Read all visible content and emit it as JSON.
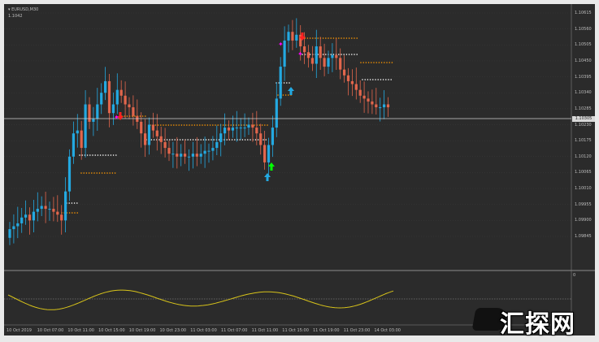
{
  "chart": {
    "symbol_label": "▾ EURUSD,M30",
    "top_price_label": "1.1042",
    "current_price": "1.10305",
    "y_ticks": [
      "1.10615",
      "1.10560",
      "1.10505",
      "1.10450",
      "1.10395",
      "1.10340",
      "1.10285",
      "1.10230",
      "1.10175",
      "1.10120",
      "1.10065",
      "1.10010",
      "1.09955",
      "1.09900",
      "1.09845"
    ],
    "x_ticks": [
      "10 Oct 2019",
      "10 Oct 07:00",
      "10 Oct 11:00",
      "10 Oct 15:00",
      "10 Oct 19:00",
      "10 Oct 23:00",
      "11 Oct 03:00",
      "11 Oct 07:00",
      "11 Oct 11:00",
      "11 Oct 15:00",
      "11 Oct 19:00",
      "11 Oct 23:00",
      "14 Oct 03:00"
    ],
    "osc_label_top": "0",
    "colors": {
      "background": "#2b2b2b",
      "grid": "#3c3c3c",
      "bull": "#23a9e1",
      "bear": "#e2664c",
      "trail_orange": "#ff9800",
      "trail_white": "#ffffff",
      "oscillator": "#d6c21a",
      "buy_arrow": "#00ff00",
      "sell_arrow": "#ff2020",
      "signal_magenta": "#ff00ff"
    }
  },
  "watermark": {
    "text": "汇探网"
  },
  "chart_data": {
    "type": "candlestick",
    "symbol": "EURUSD",
    "timeframe": "M30",
    "candle_close": [
      1.0987,
      1.0988,
      1.0989,
      1.0991,
      1.0992,
      1.099,
      1.0993,
      1.0994,
      1.0995,
      1.0994,
      1.0994,
      1.0993,
      1.0992,
      1.099,
      1.1,
      1.1012,
      1.102,
      1.1021,
      1.1015,
      1.103,
      1.1024,
      1.1025,
      1.103,
      1.1034,
      1.1038,
      1.1027,
      1.103,
      1.1035,
      1.1033,
      1.103,
      1.1029,
      1.1026,
      1.1024,
      1.102,
      1.1016,
      1.1023,
      1.1021,
      1.1019,
      1.1017,
      1.1015,
      1.1013,
      1.1013,
      1.1012,
      1.1013,
      1.1012,
      1.1012,
      1.1013,
      1.1012,
      1.1013,
      1.1014,
      1.1014,
      1.1015,
      1.1017,
      1.102,
      1.1022,
      1.1021,
      1.1022,
      1.1022,
      1.1022,
      1.1022,
      1.1023,
      1.1022,
      1.102,
      1.1016,
      1.101,
      1.1016,
      1.1022,
      1.1032,
      1.1043,
      1.1052,
      1.1055,
      1.1052,
      1.1054,
      1.105,
      1.1048,
      1.1046,
      1.1044,
      1.105,
      1.1046,
      1.1043,
      1.1046,
      1.1047,
      1.1046,
      1.1042,
      1.104,
      1.1038,
      1.1037,
      1.1035,
      1.1033,
      1.1032,
      1.1031,
      1.103,
      1.1029,
      1.1029,
      1.103,
      1.1029
    ]
  }
}
